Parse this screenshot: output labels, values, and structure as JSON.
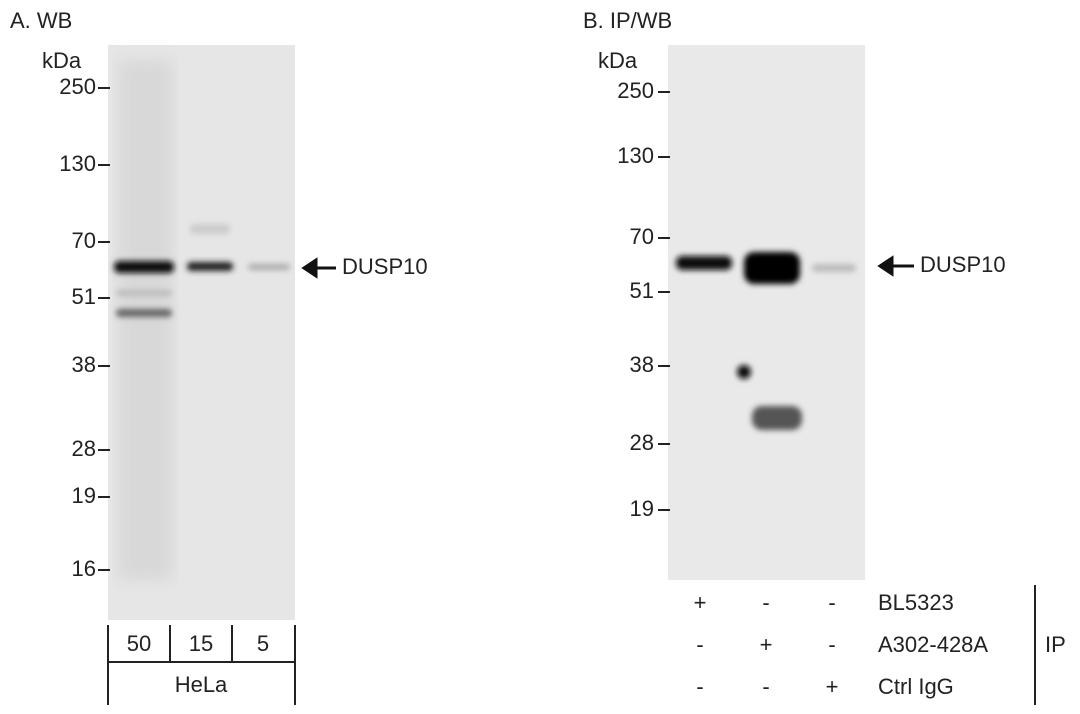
{
  "panels": [
    {
      "label": "A. WB",
      "unit": "kDa",
      "markers": [
        "250",
        "130",
        "70",
        "51",
        "38",
        "28",
        "19",
        "16"
      ],
      "band_label": "DUSP10",
      "lanes": [
        "50",
        "15",
        "5"
      ],
      "sample": "HeLa"
    },
    {
      "label": "B. IP/WB",
      "unit": "kDa",
      "markers": [
        "250",
        "130",
        "70",
        "51",
        "38",
        "28",
        "19"
      ],
      "band_label": "DUSP10",
      "ip_rows": [
        {
          "name": "BL5323",
          "marks": [
            "+",
            "-",
            "-"
          ]
        },
        {
          "name": "A302-428A",
          "marks": [
            "-",
            "+",
            "-"
          ]
        },
        {
          "name": "Ctrl IgG",
          "marks": [
            "-",
            "-",
            "+"
          ]
        }
      ],
      "ip_label": "IP"
    }
  ]
}
